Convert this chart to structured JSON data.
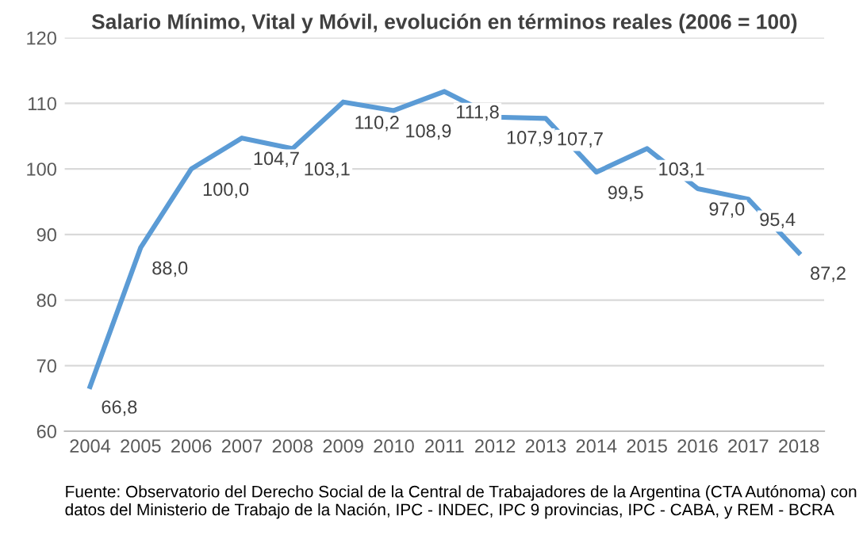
{
  "chart_data": {
    "type": "line",
    "title": "Salario Mínimo, Vital y Móvil, evolución en términos reales (2006 = 100)",
    "categories": [
      "2004",
      "2005",
      "2006",
      "2007",
      "2008",
      "2009",
      "2010",
      "2011",
      "2012",
      "2013",
      "2014",
      "2015",
      "2016",
      "2017",
      "2018"
    ],
    "series": [
      {
        "color": "#5b9bd5",
        "values": [
          66.8,
          88.0,
          100.0,
          104.7,
          103.1,
          110.2,
          108.9,
          111.8,
          107.9,
          107.7,
          99.5,
          103.1,
          97.0,
          95.4,
          87.2
        ],
        "value_labels": [
          "66,8",
          "88,0",
          "100,0",
          "104,7",
          "103,1",
          "110,2",
          "108,9",
          "111,8",
          "107,9",
          "107,7",
          "99,5",
          "103,1",
          "97,0",
          "95,4",
          "87,2"
        ]
      }
    ],
    "ylim": [
      60,
      120
    ],
    "yticks": [
      60,
      70,
      80,
      90,
      100,
      110,
      120
    ],
    "grid": "y",
    "legend": false,
    "marker": "none",
    "line_style": "solid",
    "annotations": [
      "Fuente: Observatorio del Derecho Social de la Central de Trabajadores de la Argentina (CTA Autónoma) con datos del Ministerio de Trabajo de la Nación, IPC - INDEC, IPC 9 provincias, IPC - CABA, y REM - BCRA"
    ]
  }
}
